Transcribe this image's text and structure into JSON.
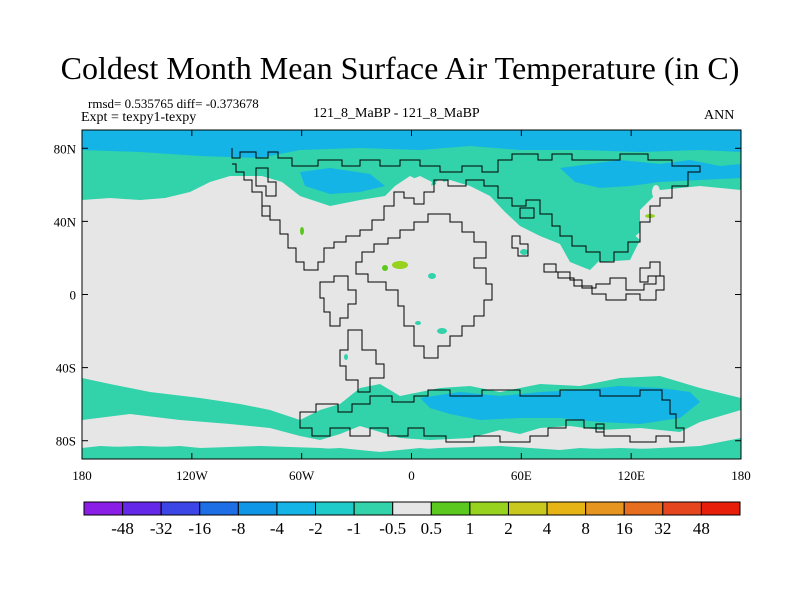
{
  "title": "Coldest Month Mean Surface Air Temperature (in C)",
  "stats": "rmsd= 0.535765 diff= -0.373678",
  "expt": "Expt = texpy1-texpy",
  "case": "121_8_MaBP - 121_8_MaBP",
  "season": "ANN",
  "x_ticks": [
    {
      "label": "180",
      "lon": -180
    },
    {
      "label": "120W",
      "lon": -120
    },
    {
      "label": "60W",
      "lon": -60
    },
    {
      "label": "0",
      "lon": 0
    },
    {
      "label": "60E",
      "lon": 60
    },
    {
      "label": "120E",
      "lon": 120
    },
    {
      "label": "180",
      "lon": 180
    }
  ],
  "y_ticks": [
    {
      "label": "80N",
      "lat": 80
    },
    {
      "label": "40N",
      "lat": 40
    },
    {
      "label": "0",
      "lat": 0
    },
    {
      "label": "40S",
      "lat": -40
    },
    {
      "label": "80S",
      "lat": -80
    }
  ],
  "colorbar": {
    "colors": [
      "#8a1ee6",
      "#6428e8",
      "#3c46e6",
      "#1e6ee6",
      "#0f96e6",
      "#14b4e6",
      "#1ecbc8",
      "#32d2aa",
      "#e6e6e6",
      "#5ac81e",
      "#96d21e",
      "#c8c81e",
      "#e6b414",
      "#e6961e",
      "#e66e1e",
      "#e6461e",
      "#e61e0a"
    ],
    "labels": [
      "-48",
      "-32",
      "-16",
      "-8",
      "-4",
      "-2",
      "-1",
      "-0.5",
      "0.5",
      "1",
      "2",
      "4",
      "8",
      "16",
      "32",
      "48"
    ]
  },
  "colors": {
    "background_field": "#e6e6e6",
    "cyan_band": "#14b4e6",
    "teal_band": "#32d2aa",
    "green": "#5ac81e",
    "lime": "#96d21e"
  }
}
